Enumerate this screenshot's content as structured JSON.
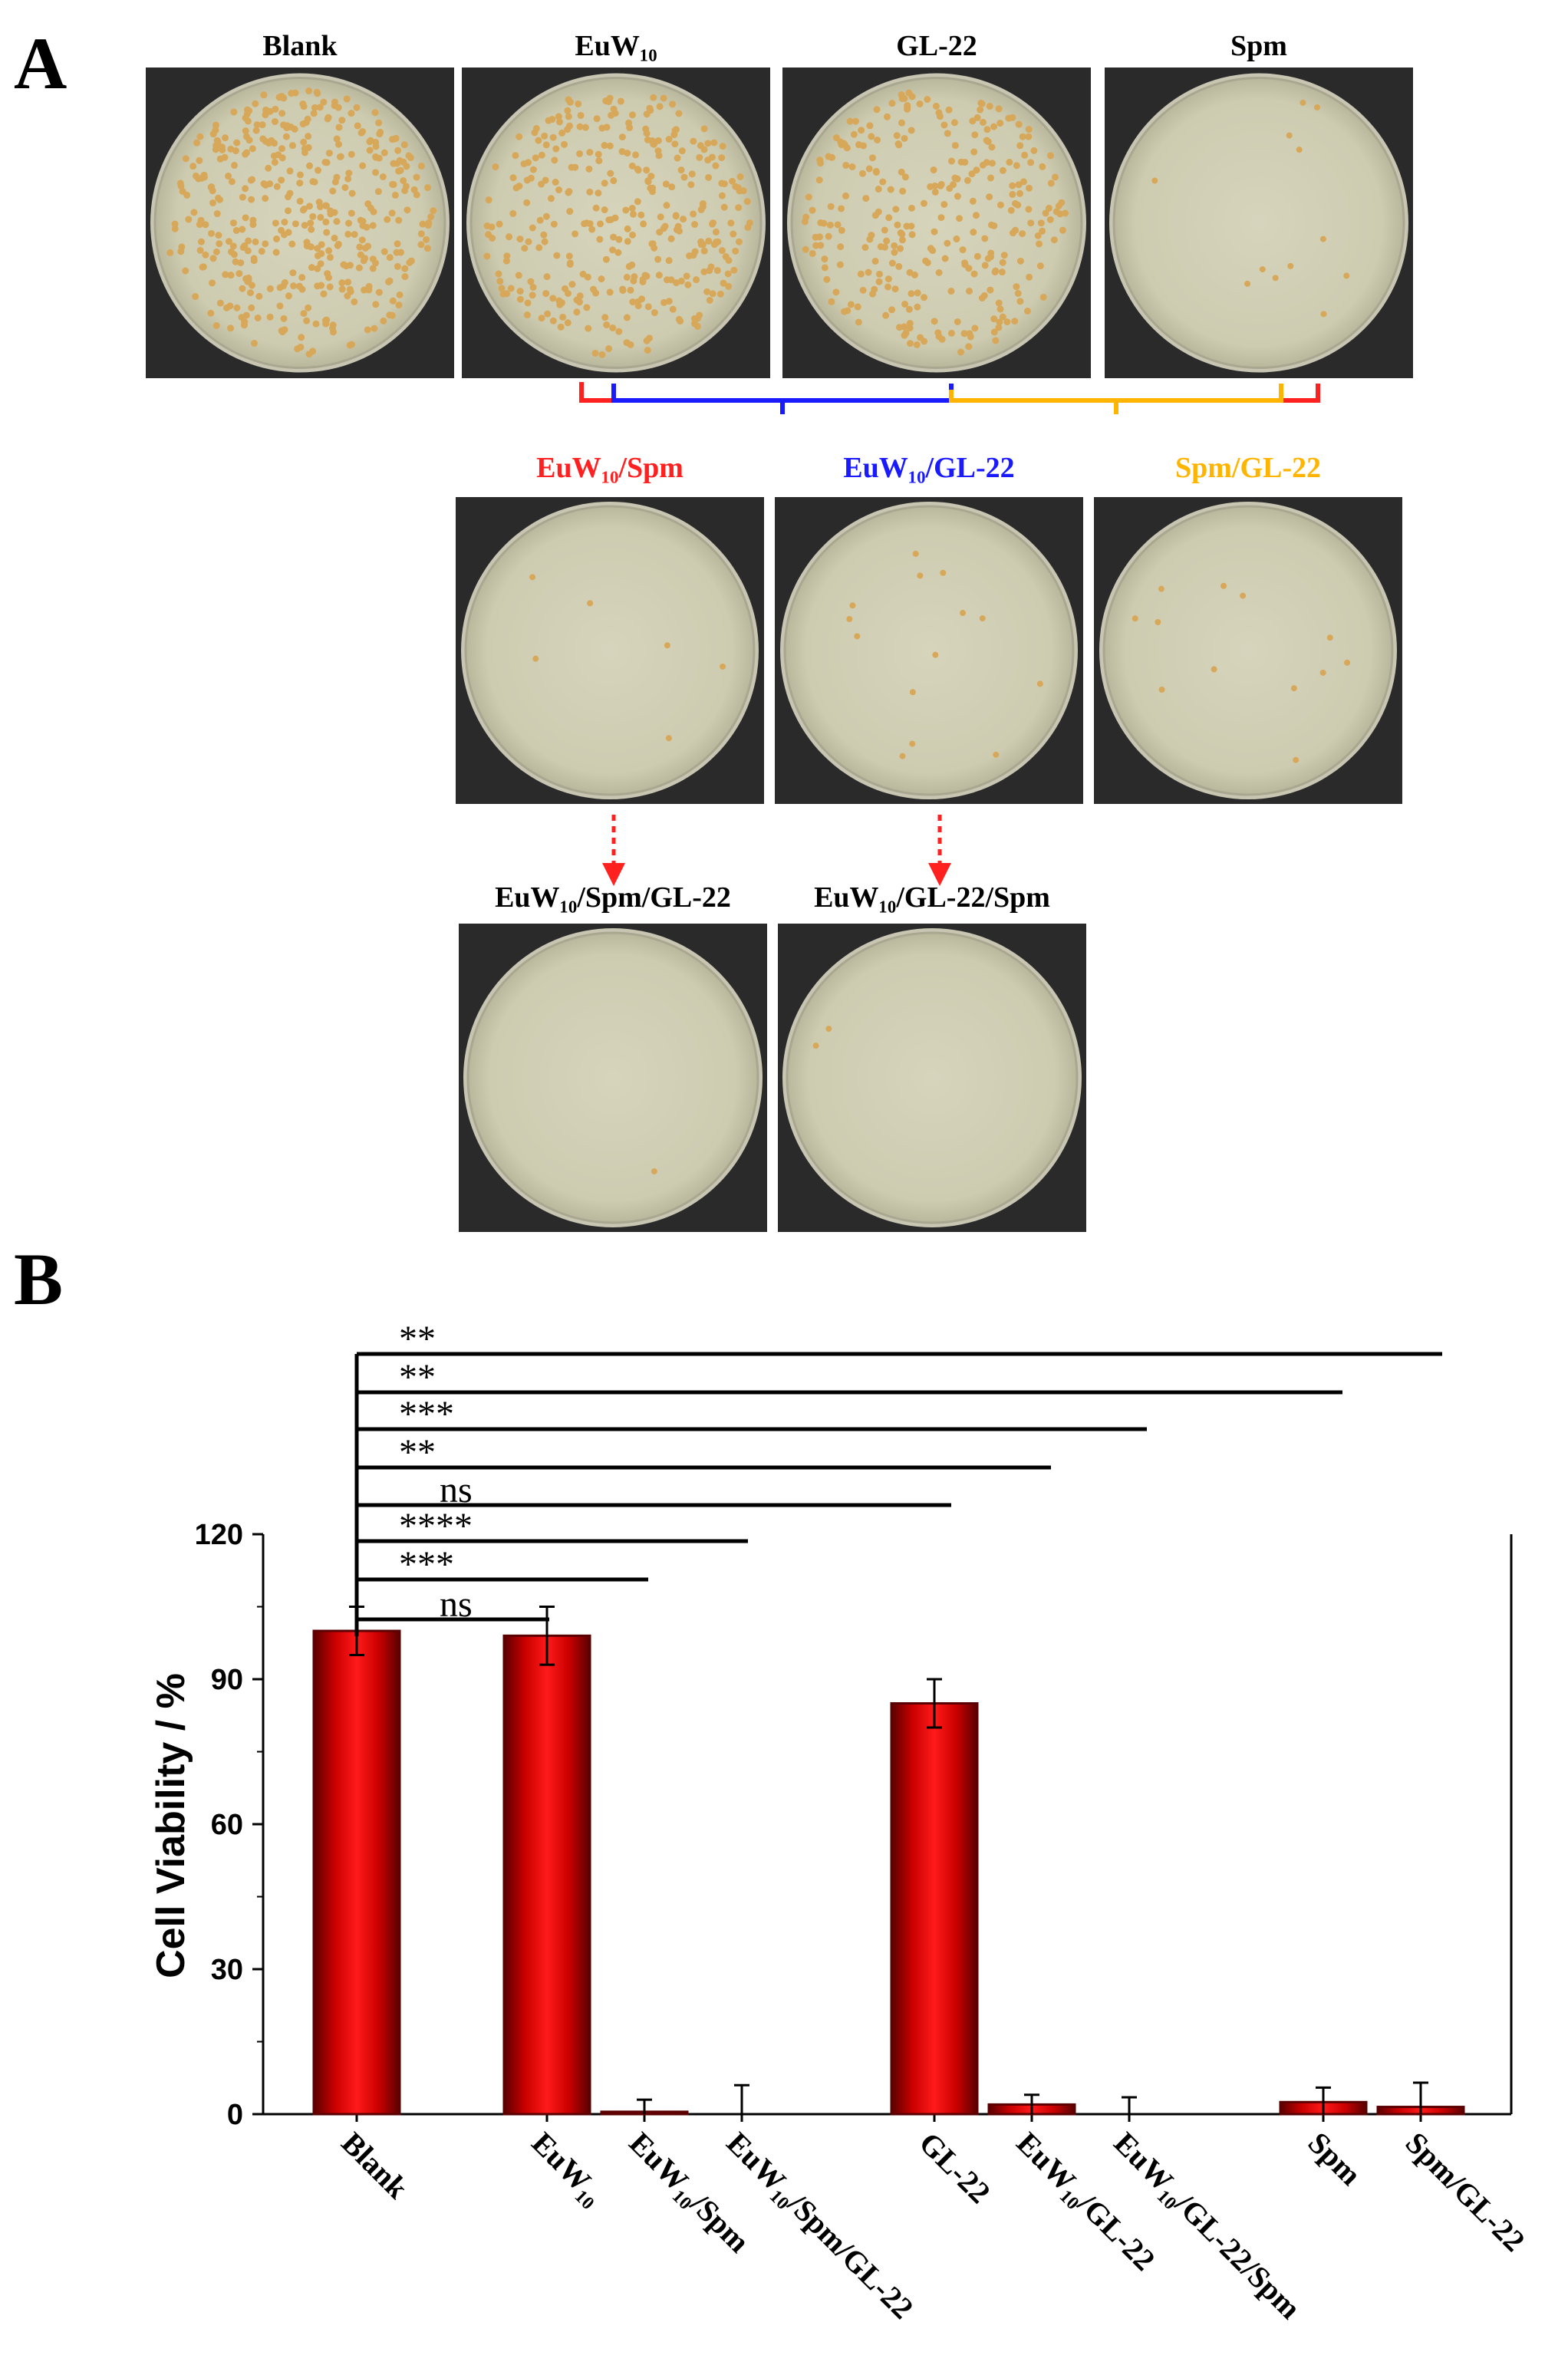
{
  "panels": {
    "a_letter": "A",
    "b_letter": "B"
  },
  "colors": {
    "bar_fill": "#e60000",
    "bar_edge": "#5a0000",
    "red": "#ff2020",
    "blue": "#1a1aff",
    "yellow": "#ffb400",
    "plate_bg": "#2a2a2a",
    "agar": "#d3d2b8",
    "colony": "#d8a85a"
  },
  "plates": {
    "row1": [
      {
        "label": "Blank",
        "colonies": 420,
        "color": "#000000"
      },
      {
        "label": "EuW₁₀",
        "colonies": 340,
        "color": "#000000"
      },
      {
        "label": "GL-22",
        "colonies": 300,
        "color": "#000000"
      },
      {
        "label": "Spm",
        "colonies": 12,
        "color": "#000000"
      }
    ],
    "row2": [
      {
        "label": "EuW₁₀/Spm",
        "colonies": 6,
        "color": "#ff2020"
      },
      {
        "label": "EuW₁₀/GL-22",
        "colonies": 14,
        "color": "#1a1aff"
      },
      {
        "label": "Spm/GL-22",
        "colonies": 12,
        "color": "#ffb400"
      }
    ],
    "row3": [
      {
        "label": "EuW₁₀/Spm/GL-22",
        "colonies": 1,
        "color": "#000000"
      },
      {
        "label": "EuW₁₀/GL-22/Spm",
        "colonies": 2,
        "color": "#000000"
      }
    ]
  },
  "chart_data": {
    "type": "bar",
    "ylabel": "Cell Viability / %",
    "ylim": [
      0,
      120
    ],
    "yticks": [
      0,
      30,
      60,
      90,
      120
    ],
    "categories": [
      "Blank",
      "EuW₁₀",
      "EuW₁₀/Spm",
      "EuW₁₀/Spm/GL-22",
      "GL-22",
      "EuW₁₀/GL-22",
      "EuW₁₀/GL-22/Spm",
      "Spm",
      "Spm/GL-22"
    ],
    "values": [
      100,
      99,
      0.5,
      0,
      85,
      2,
      0,
      2.5,
      1.5
    ],
    "errors": [
      5,
      6,
      2.5,
      6,
      5,
      2,
      3.5,
      3,
      5
    ],
    "significance": [
      {
        "label": "ns",
        "vs": "EuW₁₀"
      },
      {
        "label": "***",
        "vs": "EuW₁₀/Spm"
      },
      {
        "label": "****",
        "vs": "EuW₁₀/Spm/GL-22"
      },
      {
        "label": "ns",
        "vs": "GL-22"
      },
      {
        "label": "**",
        "vs": "EuW₁₀/GL-22"
      },
      {
        "label": "***",
        "vs": "EuW₁₀/GL-22/Spm"
      },
      {
        "label": "**",
        "vs": "Spm"
      },
      {
        "label": "**",
        "vs": "Spm/GL-22"
      }
    ]
  }
}
